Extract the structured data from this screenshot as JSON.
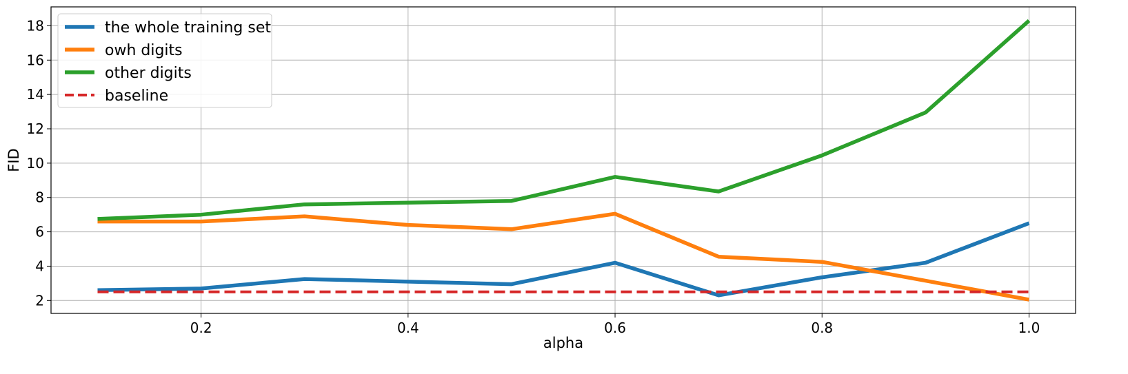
{
  "chart_data": {
    "type": "line",
    "xlabel": "alpha",
    "ylabel": "FID",
    "xlim": [
      0.055,
      1.045
    ],
    "ylim": [
      1.25,
      19.1
    ],
    "xticks": [
      0.2,
      0.4,
      0.6,
      0.8,
      1.0
    ],
    "xtick_labels": [
      "0.2",
      "0.4",
      "0.6",
      "0.8",
      "1.0"
    ],
    "yticks": [
      2,
      4,
      6,
      8,
      10,
      12,
      14,
      16,
      18
    ],
    "ytick_labels": [
      "2",
      "4",
      "6",
      "8",
      "10",
      "12",
      "14",
      "16",
      "18"
    ],
    "grid": true,
    "legend_position": "top-left",
    "x": [
      0.1,
      0.2,
      0.3,
      0.4,
      0.5,
      0.6,
      0.7,
      0.8,
      0.9,
      1.0
    ],
    "series": [
      {
        "name": "the whole training set",
        "color": "#1f77b4",
        "style": "solid",
        "values": [
          2.6,
          2.7,
          3.25,
          3.1,
          2.95,
          4.2,
          2.3,
          3.35,
          4.2,
          6.5
        ]
      },
      {
        "name": "owh digits",
        "color": "#ff7f0e",
        "style": "solid",
        "values": [
          6.6,
          6.6,
          6.9,
          6.4,
          6.15,
          7.05,
          4.55,
          4.25,
          3.15,
          2.05
        ]
      },
      {
        "name": "other digits",
        "color": "#2ca02c",
        "style": "solid",
        "values": [
          6.75,
          7.0,
          7.6,
          7.7,
          7.8,
          9.2,
          8.35,
          10.45,
          12.95,
          18.3
        ]
      },
      {
        "name": "baseline",
        "color": "#d62728",
        "style": "dashed",
        "values": [
          2.5,
          2.5,
          2.5,
          2.5,
          2.5,
          2.5,
          2.5,
          2.5,
          2.5,
          2.5
        ]
      }
    ]
  }
}
